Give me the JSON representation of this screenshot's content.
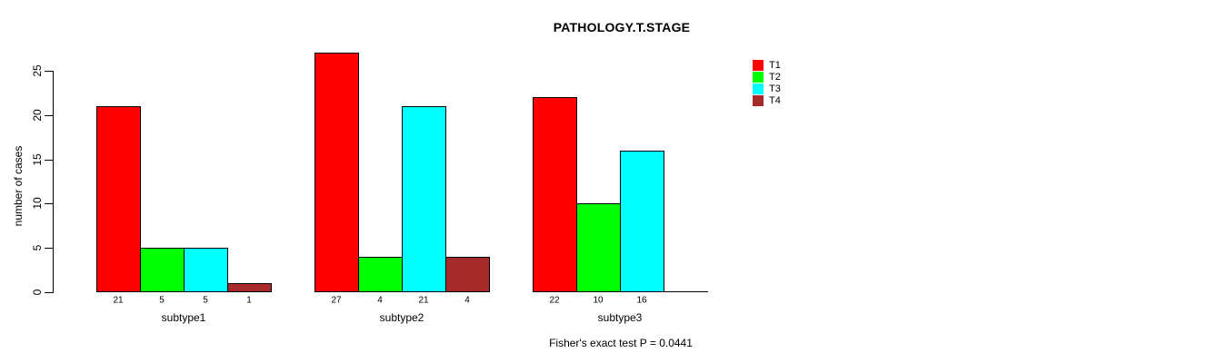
{
  "chart_data": {
    "type": "bar",
    "grouped": true,
    "title": "PATHOLOGY.T.STAGE",
    "ylabel": "number of cases",
    "xlabel": "",
    "footnote": "Fisher's exact test P = 0.0441",
    "categories": [
      "subtype1",
      "subtype2",
      "subtype3"
    ],
    "series": [
      {
        "name": "T1",
        "color": "#FF0000",
        "values": [
          21,
          27,
          22
        ]
      },
      {
        "name": "T2",
        "color": "#00FF00",
        "values": [
          5,
          4,
          10
        ]
      },
      {
        "name": "T3",
        "color": "#00FFFF",
        "values": [
          5,
          21,
          16
        ]
      },
      {
        "name": "T4",
        "color": "#A52A2A",
        "values": [
          1,
          4,
          0
        ]
      }
    ],
    "bar_value_labels": {
      "subtype1": [
        21,
        5,
        5,
        1
      ],
      "subtype2": [
        27,
        4,
        21,
        4
      ],
      "subtype3": [
        22,
        10,
        16,
        0
      ]
    },
    "yticks": [
      0,
      5,
      10,
      15,
      20,
      25
    ],
    "ylim": [
      0,
      25
    ],
    "grid": false,
    "legend_position": "top-right",
    "legend_entries": [
      "T1",
      "T2",
      "T3",
      "T4"
    ],
    "axis_color": "#000000",
    "bar_border_color": "#000000"
  }
}
